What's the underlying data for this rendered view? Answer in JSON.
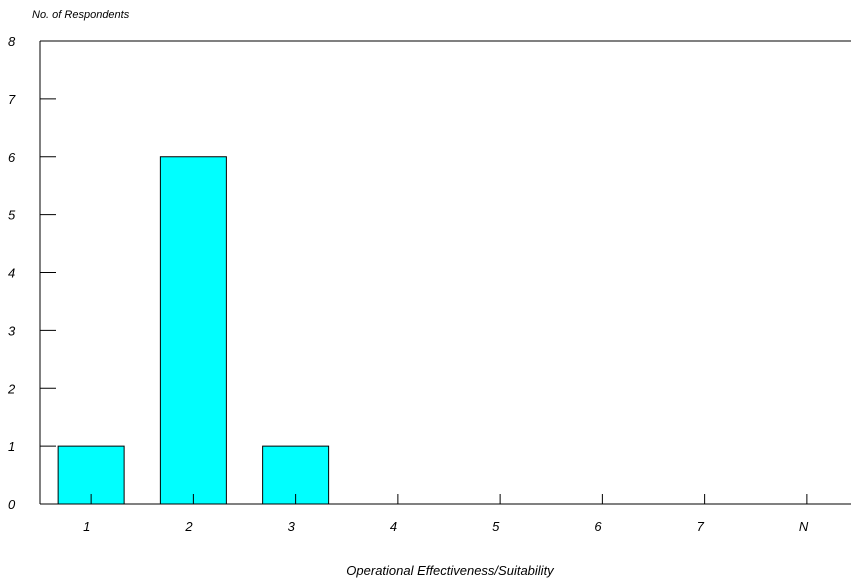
{
  "chart_data": {
    "type": "bar",
    "title": "",
    "ylabel": "No. of Respondents",
    "xlabel": "Operational Effectiveness/Suitability",
    "categories": [
      "1",
      "2",
      "3",
      "4",
      "5",
      "6",
      "7",
      "N"
    ],
    "values": [
      1,
      6,
      1,
      0,
      0,
      0,
      0,
      0
    ],
    "ylim": [
      0,
      8
    ],
    "yticks": [
      "0",
      "1",
      "2",
      "3",
      "4",
      "5",
      "6",
      "7",
      "8"
    ],
    "grid": false,
    "bar_color": "#00FFFF"
  }
}
